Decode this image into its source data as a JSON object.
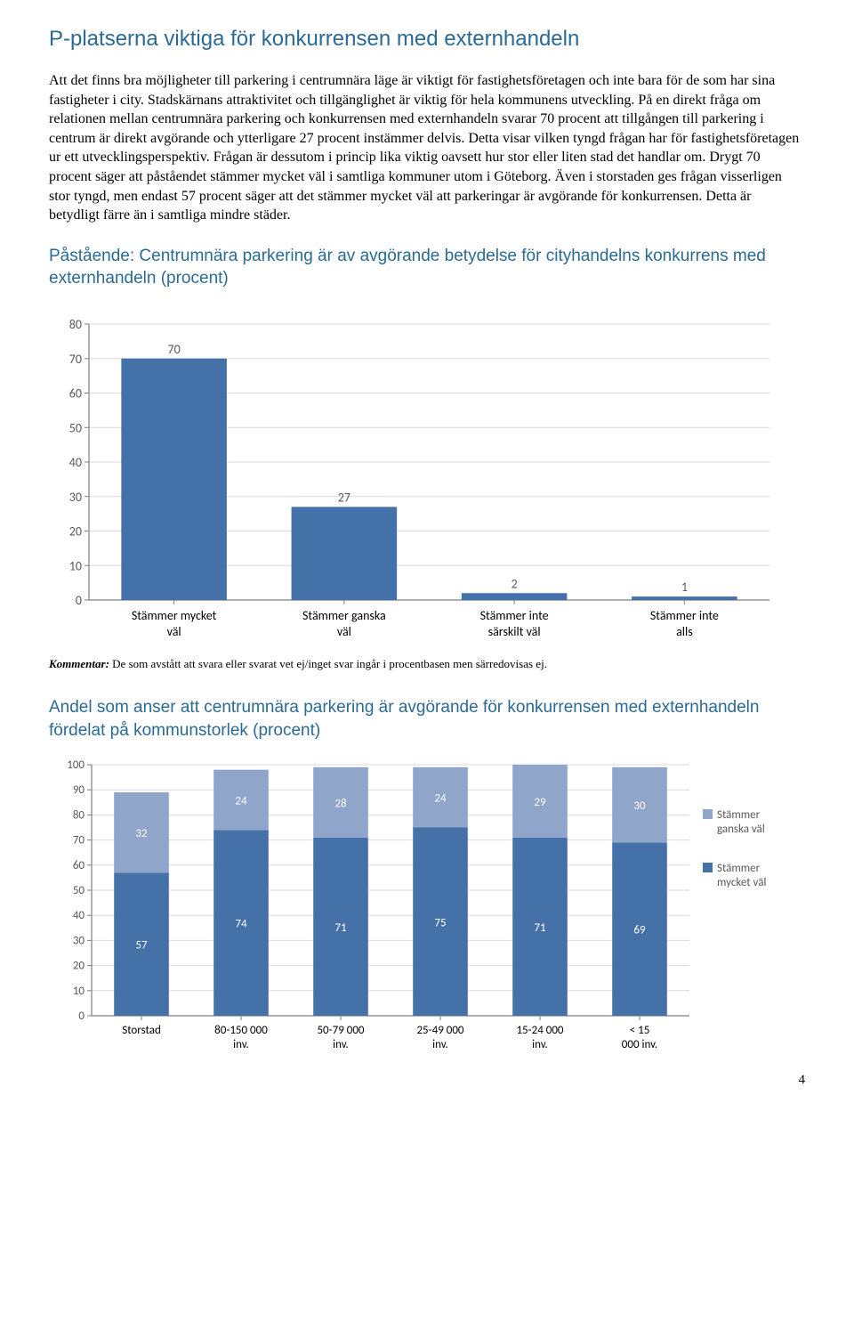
{
  "colors": {
    "heading": "#2a6a94",
    "body": "#000000",
    "bar_primary": "#4472a8",
    "bar_secondary": "#8fa5c9",
    "axis": "#7f7f7f",
    "grid": "#d9d9d9",
    "tick_label": "#595959",
    "legend_text": "#595959"
  },
  "heading1": "P-platserna viktiga för konkurrensen med externhandeln",
  "paragraph": "Att det finns bra möjligheter till parkering i centrumnära läge är viktigt för fastighetsföretagen och inte bara för de som har sina fastigheter i city. Stadskärnans attraktivitet och tillgänglighet är viktig för hela kommunens utveckling. På en direkt fråga om relationen mellan centrumnära parkering och konkurrensen med externhandeln svarar 70 procent att tillgången till parkering i centrum är direkt avgörande och ytterligare 27 procent instämmer delvis. Detta visar vilken tyngd frågan har för fastighetsföretagen ur ett utvecklingsperspektiv. Frågan är dessutom i princip lika viktig oavsett hur stor eller liten stad det handlar om. Drygt 70 procent säger att påståendet stämmer mycket väl i samtliga kommuner utom i Göteborg. Även i storstaden ges frågan visserligen stor tyngd, men endast 57 procent säger att det stämmer mycket väl att parkeringar är avgörande för konkurrensen. Detta är betydligt färre än i samtliga mindre städer.",
  "chart1": {
    "title": "Påstående: Centrumnära parkering är av avgörande betydelse för cityhandelns konkurrens med externhandeln (procent)",
    "type": "bar",
    "categories": [
      "Stämmer mycket väl",
      "Stämmer ganska väl",
      "Stämmer inte särskilt väl",
      "Stämmer inte alls"
    ],
    "values": [
      70,
      27,
      2,
      1
    ],
    "bar_color": "#4472a8",
    "ylim": [
      0,
      80
    ],
    "ytick_step": 10,
    "label_fontsize": 14,
    "value_fontsize": 14
  },
  "comment_label": "Kommentar:",
  "comment_text": " De som avstått att svara eller svarat vet ej/inget svar ingår i procentbasen men särredovisas ej.",
  "chart2": {
    "title": "Andel som anser att centrumnära parkering är avgörande för konkurrensen med externhandeln fördelat på kommunstorlek (procent)",
    "type": "stacked-bar",
    "categories": [
      "Storstad",
      "80-150 000 inv.",
      "50-79 000 inv.",
      "25-49 000 inv.",
      "15-24 000 inv.",
      "< 15 000 inv."
    ],
    "series": [
      {
        "name": "Stämmer mycket väl",
        "color": "#4472a8",
        "values": [
          57,
          74,
          71,
          75,
          71,
          69
        ]
      },
      {
        "name": "Stämmer ganska väl",
        "color": "#8fa5c9",
        "values": [
          32,
          24,
          28,
          24,
          29,
          30
        ]
      }
    ],
    "legend": [
      "Stämmer ganska väl",
      "Stämmer mycket väl"
    ],
    "legend_colors": [
      "#8fa5c9",
      "#4472a8"
    ],
    "ylim": [
      0,
      100
    ],
    "ytick_step": 10,
    "label_fontsize": 13,
    "value_fontsize": 13
  },
  "page_number": "4"
}
